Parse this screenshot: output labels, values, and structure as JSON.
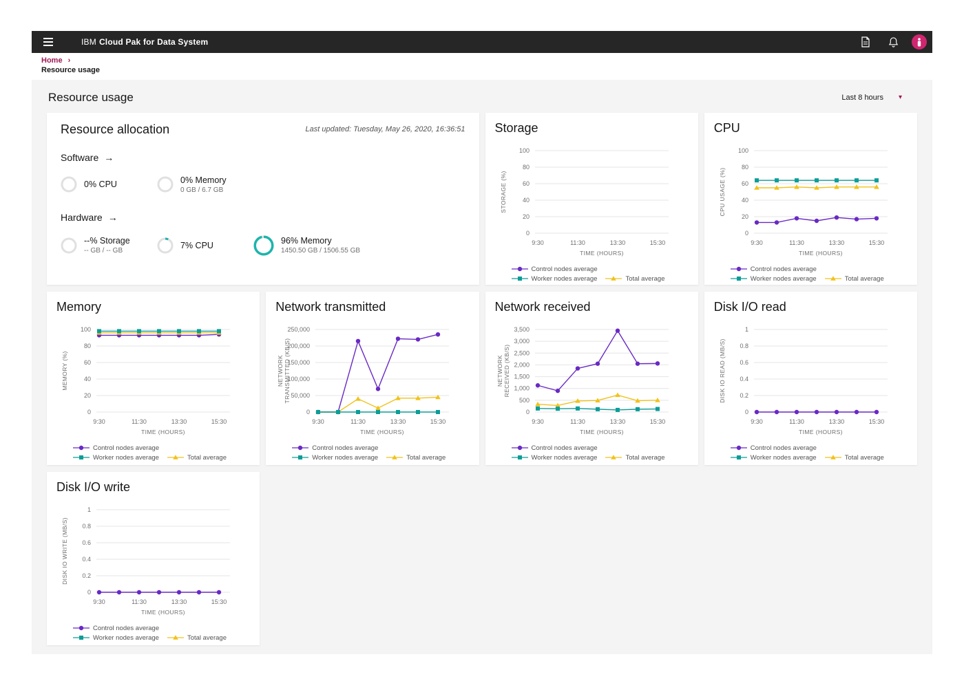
{
  "header": {
    "brand_prefix": "IBM",
    "brand_name": "Cloud Pak for Data System"
  },
  "breadcrumb": {
    "home": "Home",
    "chevron": "›",
    "current": "Resource usage"
  },
  "page": {
    "title": "Resource usage",
    "time_range": "Last 8 hours"
  },
  "colors": {
    "control": "#6929c4",
    "worker": "#0d9d98",
    "total": "#f1c21b",
    "link_magenta": "#9f1853",
    "donut_teal": "#1cb5ac",
    "donut_track": "#e0e0e0",
    "header_bg": "#262626",
    "avatar_pink": "#d02670",
    "grid_line": "#e4e4e4"
  },
  "markers": {
    "control": "circle",
    "worker": "square",
    "total": "triangle"
  },
  "legend": {
    "items": [
      {
        "key": "control",
        "label": "Control nodes average",
        "marker": "circle"
      },
      {
        "key": "worker",
        "label": "Worker nodes average",
        "marker": "square"
      },
      {
        "key": "total",
        "label": "Total average",
        "marker": "triangle"
      }
    ]
  },
  "allocation": {
    "title": "Resource allocation",
    "last_updated": "Last updated: Tuesday, May 26, 2020, 16:36:51",
    "sections": [
      {
        "label": "Software",
        "metrics": [
          {
            "percent": 0,
            "percent_label": "0% CPU",
            "sub": ""
          },
          {
            "percent": 0,
            "percent_label": "0% Memory",
            "sub": "0 GB / 6.7 GB"
          }
        ]
      },
      {
        "label": "Hardware",
        "metrics": [
          {
            "percent": 0,
            "percent_label": "--% Storage",
            "sub": "-- GB / -- GB"
          },
          {
            "percent": 7,
            "percent_label": "7% CPU",
            "sub": ""
          },
          {
            "percent": 96,
            "percent_label": "96% Memory",
            "sub": "1450.50 GB / 1506.55 GB",
            "large": true
          }
        ]
      }
    ]
  },
  "chart_data": [
    {
      "type": "line",
      "title": "Storage",
      "xlabel": "TIME (HOURS)",
      "ylabel": [
        "STORAGE (%)"
      ],
      "x": [
        "9:30",
        "10:30",
        "11:30",
        "12:30",
        "13:30",
        "14:30",
        "15:30"
      ],
      "xticks_shown": [
        "9:30",
        "11:30",
        "13:30",
        "15:30"
      ],
      "ylim": [
        0,
        100
      ],
      "ytick_values": [
        0,
        20,
        40,
        60,
        80,
        100
      ],
      "ytick_labels": [
        "0",
        "20",
        "40",
        "60",
        "80",
        "100"
      ],
      "grid": true,
      "legend_position": "bottom",
      "series": []
    },
    {
      "type": "line",
      "title": "CPU",
      "xlabel": "TIME (HOURS)",
      "ylabel": [
        "CPU USAGE (%)"
      ],
      "x": [
        "9:30",
        "10:30",
        "11:30",
        "12:30",
        "13:30",
        "14:30",
        "15:30"
      ],
      "xticks_shown": [
        "9:30",
        "11:30",
        "13:30",
        "15:30"
      ],
      "ylim": [
        0,
        100
      ],
      "ytick_values": [
        0,
        20,
        40,
        60,
        80,
        100
      ],
      "ytick_labels": [
        "0",
        "20",
        "40",
        "60",
        "80",
        "100"
      ],
      "grid": true,
      "legend_position": "bottom",
      "series": [
        {
          "key": "control",
          "name": "Control nodes average",
          "values": [
            13,
            13,
            18,
            15,
            19,
            17,
            18
          ]
        },
        {
          "key": "total",
          "name": "Total average",
          "values": [
            55,
            55,
            56,
            55,
            56,
            56,
            56
          ]
        },
        {
          "key": "worker",
          "name": "Worker nodes average",
          "values": [
            64,
            64,
            64,
            64,
            64,
            64,
            64
          ]
        }
      ]
    },
    {
      "type": "line",
      "title": "Memory",
      "xlabel": "TIME (HOURS)",
      "ylabel": [
        "MEMORY (%)"
      ],
      "x": [
        "9:30",
        "10:30",
        "11:30",
        "12:30",
        "13:30",
        "14:30",
        "15:30"
      ],
      "xticks_shown": [
        "9:30",
        "11:30",
        "13:30",
        "15:30"
      ],
      "ylim": [
        0,
        100
      ],
      "ytick_values": [
        0,
        20,
        40,
        60,
        80,
        100
      ],
      "ytick_labels": [
        "0",
        "20",
        "40",
        "60",
        "80",
        "100"
      ],
      "grid": true,
      "legend_position": "bottom",
      "series": [
        {
          "key": "control",
          "name": "Control nodes average",
          "values": [
            93,
            93,
            93,
            93,
            93,
            93,
            94
          ]
        },
        {
          "key": "total",
          "name": "Total average",
          "values": [
            96,
            96,
            96,
            96,
            96,
            96,
            96
          ]
        },
        {
          "key": "worker",
          "name": "Worker nodes average",
          "values": [
            98,
            98,
            98,
            98,
            98,
            98,
            98
          ]
        }
      ]
    },
    {
      "type": "line",
      "title": "Network transmitted",
      "xlabel": "TIME (HOURS)",
      "ylabel": [
        "NETWORK",
        "TRANSMITTED (KB/S)"
      ],
      "x": [
        "9:30",
        "10:30",
        "11:30",
        "12:30",
        "13:30",
        "14:30",
        "15:30"
      ],
      "xticks_shown": [
        "9:30",
        "11:30",
        "13:30",
        "15:30"
      ],
      "ylim": [
        0,
        250000
      ],
      "ytick_values": [
        0,
        50000,
        100000,
        150000,
        200000,
        250000
      ],
      "ytick_labels": [
        "0",
        "50,000",
        "100,000",
        "150,000",
        "200,000",
        "250,000"
      ],
      "grid": true,
      "legend_position": "bottom",
      "series": [
        {
          "key": "control",
          "name": "Control nodes average",
          "values": [
            0,
            0,
            215000,
            70000,
            222000,
            220000,
            235000
          ]
        },
        {
          "key": "total",
          "name": "Total average",
          "values": [
            0,
            0,
            40000,
            12000,
            42000,
            42000,
            45000
          ]
        },
        {
          "key": "worker",
          "name": "Worker nodes average",
          "values": [
            0,
            0,
            0,
            0,
            0,
            0,
            0
          ]
        }
      ]
    },
    {
      "type": "line",
      "title": "Network received",
      "xlabel": "TIME (HOURS)",
      "ylabel": [
        "NETWORK",
        "RECEIVED (KB/S)"
      ],
      "x": [
        "9:30",
        "10:30",
        "11:30",
        "12:30",
        "13:30",
        "14:30",
        "15:30"
      ],
      "xticks_shown": [
        "9:30",
        "11:30",
        "13:30",
        "15:30"
      ],
      "ylim": [
        0,
        3500
      ],
      "ytick_values": [
        0,
        500,
        1000,
        1500,
        2000,
        2500,
        3000,
        3500
      ],
      "ytick_labels": [
        "0",
        "500",
        "1,000",
        "1,500",
        "2,000",
        "2,500",
        "3,000",
        "3,500"
      ],
      "grid": true,
      "legend_position": "bottom",
      "series": [
        {
          "key": "control",
          "name": "Control nodes average",
          "values": [
            1130,
            900,
            1850,
            2050,
            3450,
            2050,
            2060
          ]
        },
        {
          "key": "total",
          "name": "Total average",
          "values": [
            330,
            280,
            470,
            490,
            720,
            480,
            500
          ]
        },
        {
          "key": "worker",
          "name": "Worker nodes average",
          "values": [
            150,
            140,
            150,
            120,
            90,
            120,
            130
          ]
        }
      ]
    },
    {
      "type": "line",
      "title": "Disk I/O read",
      "xlabel": "TIME (HOURS)",
      "ylabel": [
        "DISK IO READ (MB/S)"
      ],
      "x": [
        "9:30",
        "10:30",
        "11:30",
        "12:30",
        "13:30",
        "14:30",
        "15:30"
      ],
      "xticks_shown": [
        "9:30",
        "11:30",
        "13:30",
        "15:30"
      ],
      "ylim": [
        0,
        1
      ],
      "ytick_values": [
        0,
        0.2,
        0.4,
        0.6,
        0.8,
        1
      ],
      "ytick_labels": [
        "0",
        "0.2",
        "0.4",
        "0.6",
        "0.8",
        "1"
      ],
      "grid": true,
      "legend_position": "bottom",
      "series": [
        {
          "key": "control",
          "name": "Control nodes average",
          "values": [
            0,
            0,
            0,
            0,
            0,
            0,
            0
          ]
        }
      ]
    },
    {
      "type": "line",
      "title": "Disk I/O write",
      "xlabel": "TIME (HOURS)",
      "ylabel": [
        "DISK IO WRITE (MB/S)"
      ],
      "x": [
        "9:30",
        "10:30",
        "11:30",
        "12:30",
        "13:30",
        "14:30",
        "15:30"
      ],
      "xticks_shown": [
        "9:30",
        "11:30",
        "13:30",
        "15:30"
      ],
      "ylim": [
        0,
        1
      ],
      "ytick_values": [
        0,
        0.2,
        0.4,
        0.6,
        0.8,
        1
      ],
      "ytick_labels": [
        "0",
        "0.2",
        "0.4",
        "0.6",
        "0.8",
        "1"
      ],
      "grid": true,
      "legend_position": "bottom",
      "series": [
        {
          "key": "control",
          "name": "Control nodes average",
          "values": [
            0,
            0,
            0,
            0,
            0,
            0,
            0
          ]
        }
      ]
    }
  ]
}
